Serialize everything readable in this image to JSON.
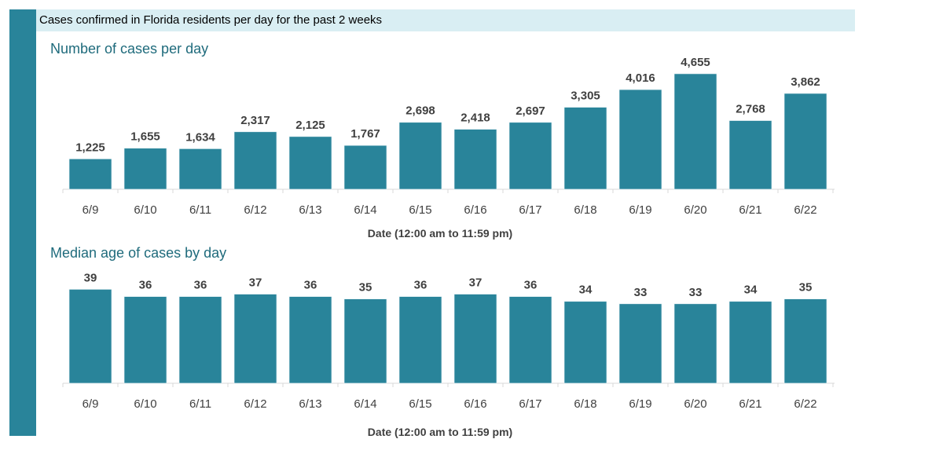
{
  "header": {
    "title": "Cases confirmed in Florida residents per day for the past 2 weeks"
  },
  "colors": {
    "bar": "#29849a",
    "band": "#d9eef3",
    "accent": "#29849a"
  },
  "chart_data": [
    {
      "type": "bar",
      "title": "Number of cases per day",
      "xlabel": "Date (12:00 am to 11:59 pm)",
      "ylabel": "",
      "categories": [
        "6/9",
        "6/10",
        "6/11",
        "6/12",
        "6/13",
        "6/14",
        "6/15",
        "6/16",
        "6/17",
        "6/18",
        "6/19",
        "6/20",
        "6/21",
        "6/22"
      ],
      "values": [
        1225,
        1655,
        1634,
        2317,
        2125,
        1767,
        2698,
        2418,
        2697,
        3305,
        4016,
        4655,
        2768,
        3862
      ],
      "labels": [
        "1,225",
        "1,655",
        "1,634",
        "2,317",
        "2,125",
        "1,767",
        "2,698",
        "2,418",
        "2,697",
        "3,305",
        "4,016",
        "4,655",
        "2,768",
        "3,862"
      ],
      "ylim": [
        0,
        5000
      ],
      "grid": false
    },
    {
      "type": "bar",
      "title": "Median age of cases by day",
      "xlabel": "Date (12:00 am to 11:59 pm)",
      "ylabel": "",
      "categories": [
        "6/9",
        "6/10",
        "6/11",
        "6/12",
        "6/13",
        "6/14",
        "6/15",
        "6/16",
        "6/17",
        "6/18",
        "6/19",
        "6/20",
        "6/21",
        "6/22"
      ],
      "values": [
        39,
        36,
        36,
        37,
        36,
        35,
        36,
        37,
        36,
        34,
        33,
        33,
        34,
        35
      ],
      "labels": [
        "39",
        "36",
        "36",
        "37",
        "36",
        "35",
        "36",
        "37",
        "36",
        "34",
        "33",
        "33",
        "34",
        "35"
      ],
      "ylim": [
        0,
        45
      ],
      "grid": false
    }
  ]
}
